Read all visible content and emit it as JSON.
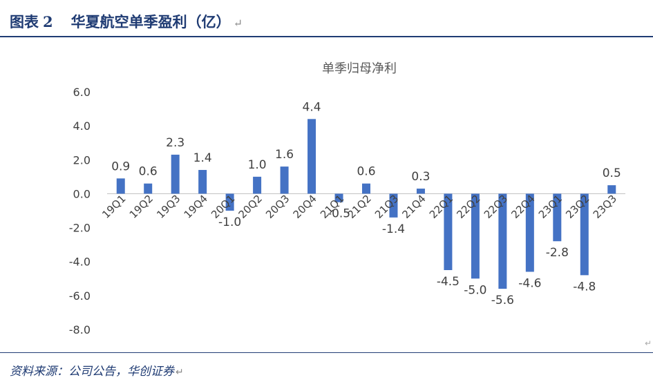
{
  "figure": {
    "label": "图表",
    "number": "2",
    "title": "华夏航空单季盈利（亿）",
    "return_mark": "↵"
  },
  "source": {
    "text": "资料来源：公司公告，华创证券",
    "return_mark": "↵"
  },
  "colors": {
    "bar": "#4472c4",
    "header": "#1f3b73",
    "axis_text": "#404040"
  },
  "chart_data": {
    "type": "bar",
    "title": "单季归母净利",
    "categories": [
      "19Q1",
      "19Q2",
      "19Q3",
      "19Q4",
      "20Q1",
      "20Q2",
      "20Q3",
      "20Q4",
      "21Q1",
      "21Q2",
      "21Q3",
      "21Q4",
      "22Q1",
      "22Q2",
      "22Q3",
      "22Q4",
      "23Q1",
      "23Q2",
      "23Q3"
    ],
    "values": [
      0.9,
      0.6,
      2.3,
      1.4,
      -1.0,
      1.0,
      1.6,
      4.4,
      -0.5,
      0.6,
      -1.4,
      0.3,
      -4.5,
      -5.0,
      -5.6,
      -4.6,
      -2.8,
      -4.8,
      0.5
    ],
    "value_labels": [
      "0.9",
      "0.6",
      "2.3",
      "1.4",
      "-1.0",
      "1.0",
      "1.6",
      "4.4",
      "-0.5",
      "0.6",
      "-1.4",
      "0.3",
      "-4.5",
      "-5.0",
      "-5.6",
      "-4.6",
      "-2.8",
      "-4.8",
      "0.5"
    ],
    "y_ticks": [
      "6.0",
      "4.0",
      "2.0",
      "0.0",
      "-2.0",
      "-4.0",
      "-6.0",
      "-8.0"
    ],
    "y_tick_values": [
      6,
      4,
      2,
      0,
      -2,
      -4,
      -6,
      -8
    ],
    "ylim": [
      -8,
      6
    ],
    "xlabel": "",
    "ylabel": "",
    "grid": false,
    "legend": "none"
  }
}
